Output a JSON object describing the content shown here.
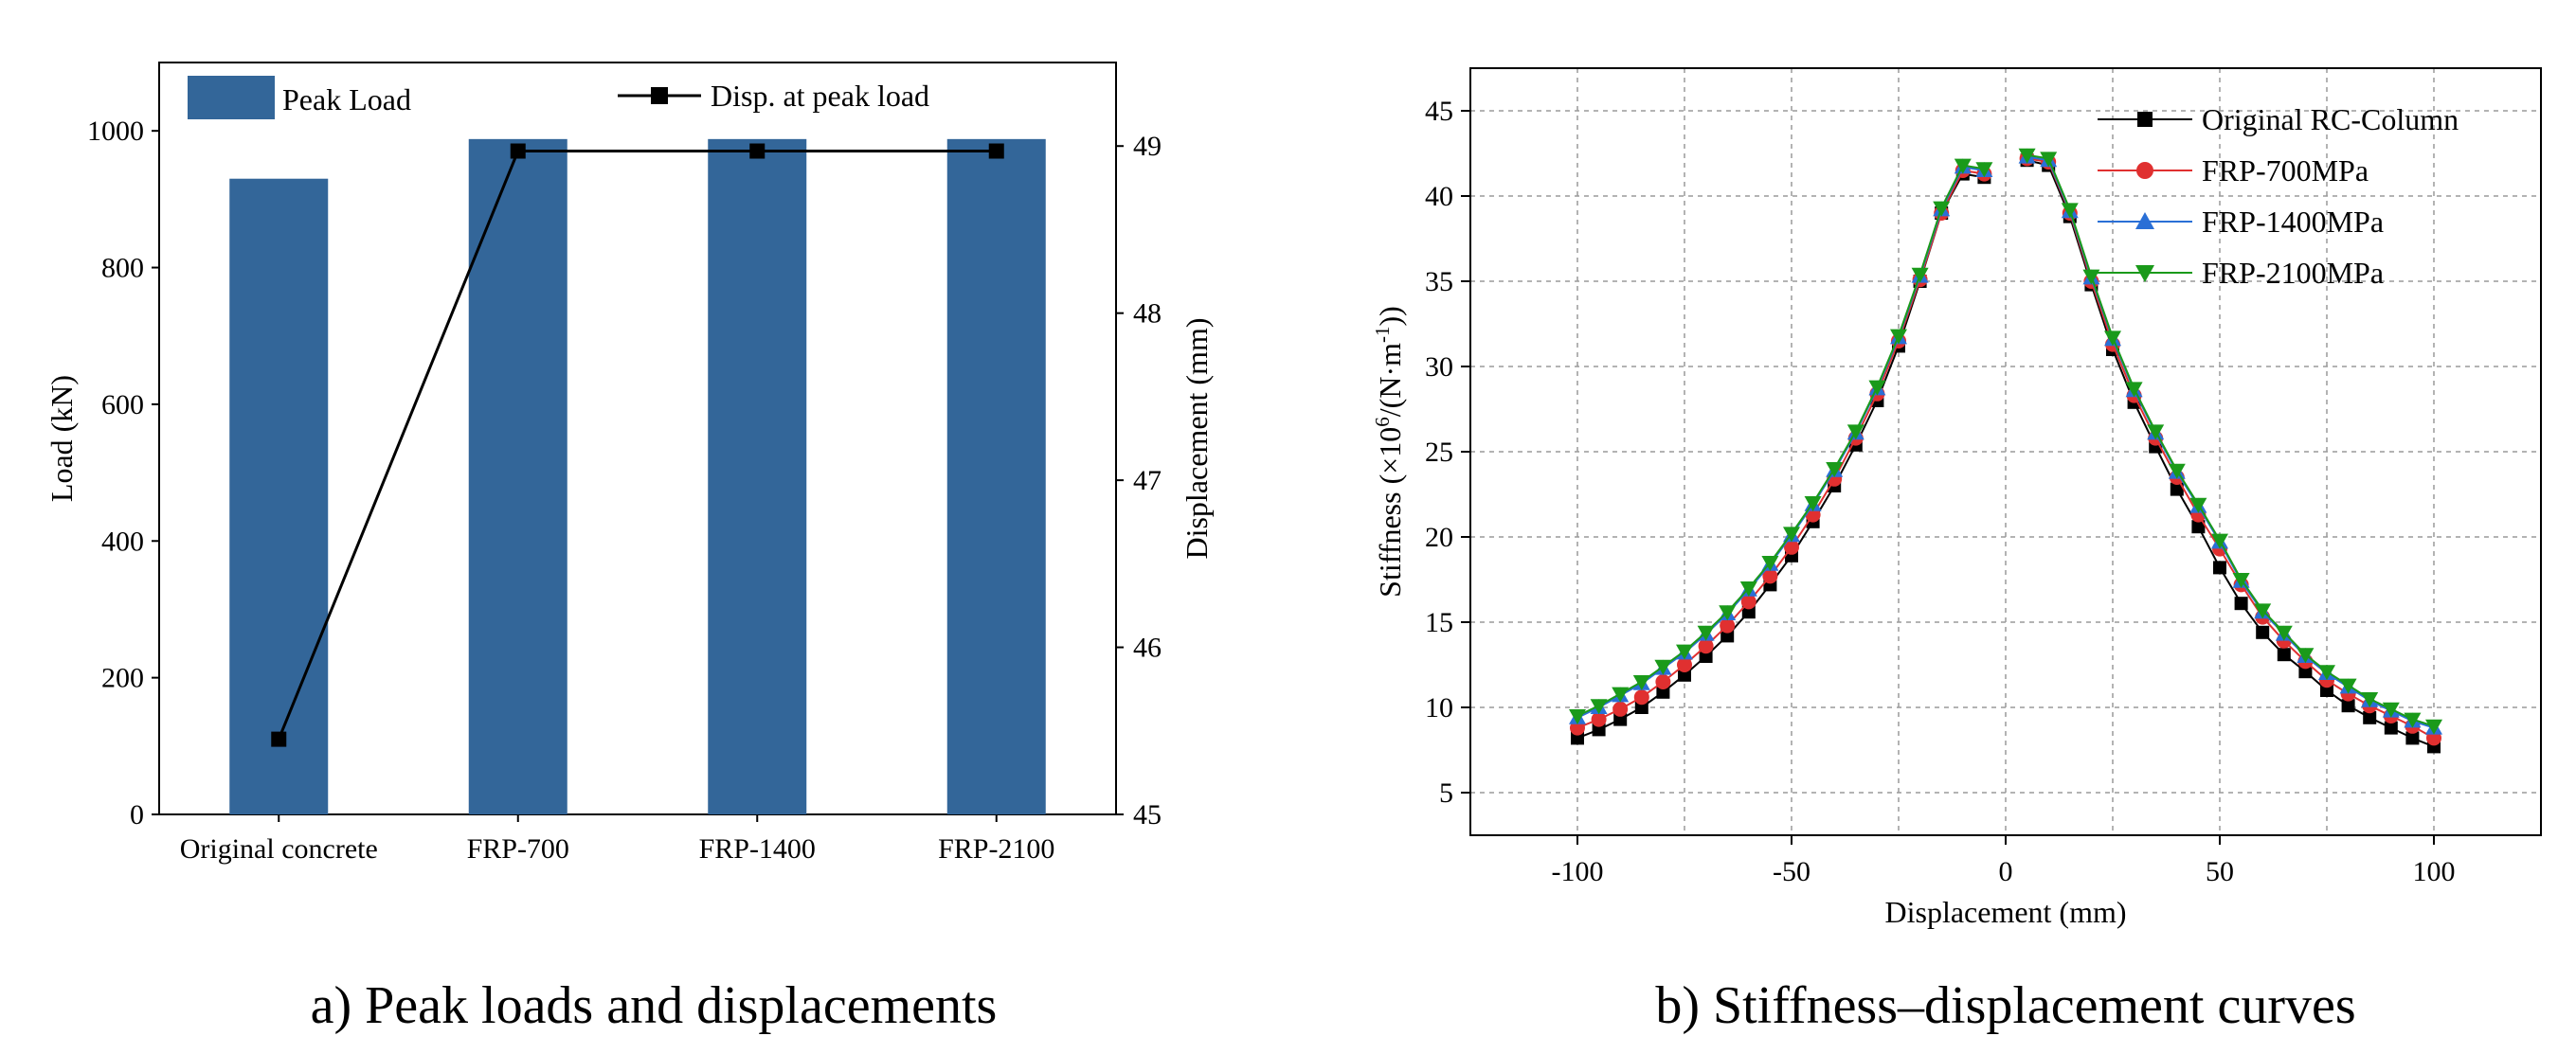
{
  "chart_data": [
    {
      "id": "a",
      "type": "bar",
      "caption": "a) Peak loads and displacements",
      "categories": [
        "Original concrete",
        "FRP-700",
        "FRP-1400",
        "FRP-2100"
      ],
      "bar_series": {
        "name": "Peak Load",
        "color": "#336699",
        "values": [
          930,
          988,
          988,
          988
        ]
      },
      "line_series": {
        "name": "Disp. at peak load",
        "color": "#000000",
        "marker": "square",
        "values": [
          45.45,
          48.97,
          48.97,
          48.97
        ]
      },
      "ylabel": "Load (kN)",
      "y2label": "Displacement (mm)",
      "ylim": [
        0,
        1100
      ],
      "y2lim": [
        45,
        49.5
      ],
      "yticks": [
        0,
        200,
        400,
        600,
        800,
        1000
      ],
      "y2ticks": [
        45,
        46,
        47,
        48,
        49
      ],
      "grid": false,
      "legend": "top"
    },
    {
      "id": "b",
      "type": "line",
      "caption": "b) Stiffness–displacement curves",
      "xlabel": "Displacement (mm)",
      "ylabel": "Stiffness (×10^6/(N·m^-1))",
      "ylabel_parts": [
        "Stiffness (×10",
        "6",
        "/(N·m",
        "-1",
        "))"
      ],
      "xlim": [
        -125,
        125
      ],
      "ylim": [
        2.5,
        47.5
      ],
      "xticks": [
        -100,
        -50,
        0,
        50,
        100
      ],
      "yticks": [
        5,
        10,
        15,
        20,
        25,
        30,
        35,
        40,
        45
      ],
      "grid": true,
      "legend": "top-right",
      "x": [
        -100,
        -95,
        -90,
        -85,
        -80,
        -75,
        -70,
        -65,
        -60,
        -55,
        -50,
        -45,
        -40,
        -35,
        -30,
        -25,
        -20,
        -15,
        -10,
        -5,
        5,
        10,
        15,
        20,
        25,
        30,
        35,
        40,
        45,
        50,
        55,
        60,
        65,
        70,
        75,
        80,
        85,
        90,
        95,
        100
      ],
      "series": [
        {
          "name": "Original RC-Column",
          "color": "#000000",
          "marker": "square",
          "values": [
            8.2,
            8.7,
            9.3,
            10.0,
            10.9,
            11.9,
            13.0,
            14.2,
            15.6,
            17.2,
            18.9,
            20.9,
            23.0,
            25.4,
            28.0,
            31.2,
            35.0,
            39.0,
            41.3,
            41.1,
            42.1,
            41.8,
            38.8,
            34.8,
            31.0,
            27.9,
            25.3,
            22.8,
            20.6,
            18.2,
            16.1,
            14.4,
            13.1,
            12.1,
            11.0,
            10.1,
            9.4,
            8.8,
            8.2,
            7.7
          ]
        },
        {
          "name": "FRP-700MPa",
          "color": "#e03030",
          "marker": "circle",
          "values": [
            8.8,
            9.3,
            9.9,
            10.6,
            11.5,
            12.5,
            13.6,
            14.8,
            16.2,
            17.7,
            19.4,
            21.3,
            23.4,
            25.8,
            28.4,
            31.5,
            35.1,
            39.0,
            41.5,
            41.3,
            42.2,
            42.0,
            39.0,
            35.0,
            31.3,
            28.3,
            25.8,
            23.5,
            21.3,
            19.3,
            17.2,
            15.3,
            13.9,
            12.7,
            11.6,
            10.8,
            10.1,
            9.5,
            8.9,
            8.2
          ]
        },
        {
          "name": "FRP-1400MPa",
          "color": "#2a6fd6",
          "marker": "triangle-up",
          "values": [
            9.4,
            10.0,
            10.7,
            11.4,
            12.3,
            13.2,
            14.3,
            15.5,
            16.9,
            18.4,
            20.1,
            21.9,
            23.9,
            26.1,
            28.7,
            31.7,
            35.3,
            39.2,
            41.7,
            41.5,
            42.3,
            42.1,
            39.1,
            35.2,
            31.6,
            28.6,
            26.1,
            23.8,
            21.8,
            19.7,
            17.4,
            15.6,
            14.3,
            13.0,
            12.0,
            11.2,
            10.4,
            9.8,
            9.2,
            8.8
          ]
        },
        {
          "name": "FRP-2100MPa",
          "color": "#1a9a1a",
          "marker": "triangle-down",
          "values": [
            9.5,
            10.1,
            10.8,
            11.5,
            12.4,
            13.3,
            14.4,
            15.6,
            17.0,
            18.5,
            20.2,
            22.0,
            24.0,
            26.2,
            28.8,
            31.8,
            35.4,
            39.3,
            41.8,
            41.6,
            42.4,
            42.2,
            39.2,
            35.3,
            31.7,
            28.7,
            26.2,
            23.9,
            21.9,
            19.8,
            17.5,
            15.7,
            14.4,
            13.1,
            12.1,
            11.3,
            10.5,
            9.9,
            9.3,
            8.9
          ]
        }
      ]
    }
  ]
}
